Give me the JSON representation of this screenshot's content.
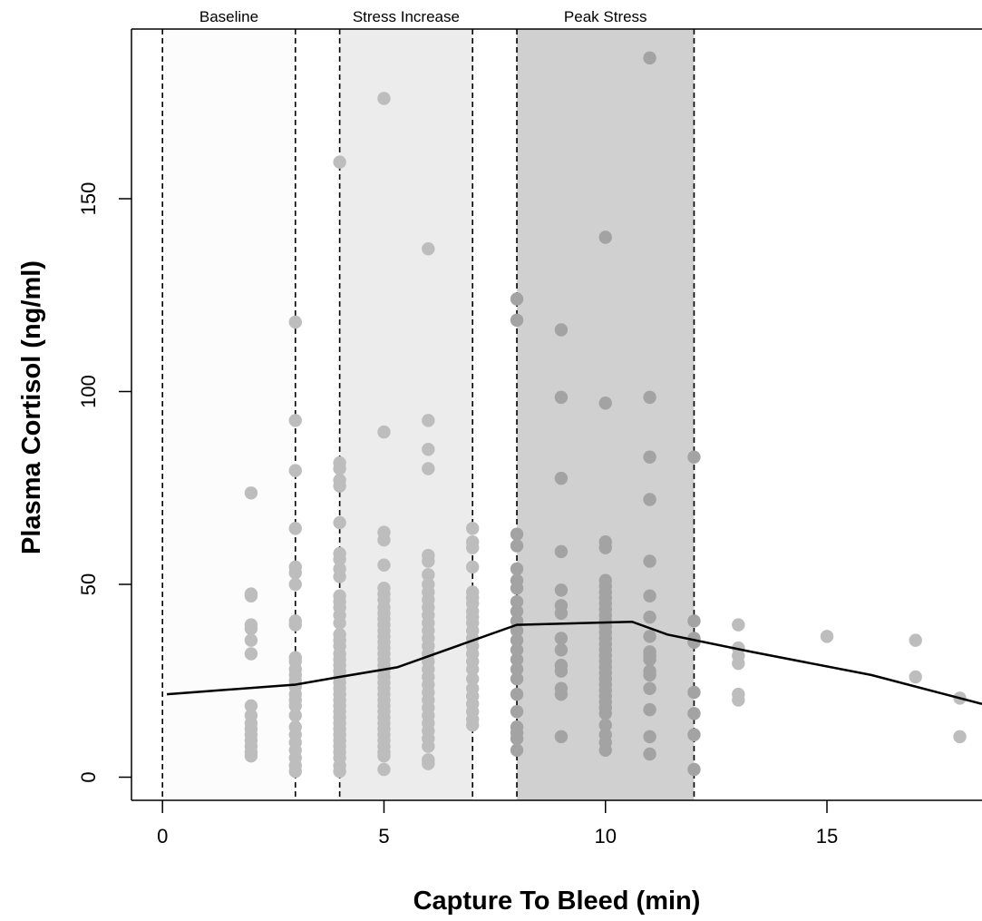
{
  "chart_data": {
    "type": "scatter",
    "title": "",
    "xlabel": "Capture To Bleed (min)",
    "ylabel": "Plasma Cortisol (ng/ml)",
    "xlim": [
      -0.7,
      18.5
    ],
    "ylim": [
      -6,
      194
    ],
    "x_ticks": [
      0,
      5,
      10,
      15
    ],
    "y_ticks": [
      0,
      50,
      100,
      150
    ],
    "grid": false,
    "legend": "none",
    "colors": {
      "point": "#bdbdbd",
      "point_in_peak": "#a3a3a3",
      "line": "#000000",
      "band_baseline": "#fcfcfc",
      "band_increase": "#ececec",
      "band_peak": "#d0d0d0"
    },
    "bands": [
      {
        "label": "Baseline",
        "start": 0,
        "end": 3
      },
      {
        "label": "Stress Increase",
        "start": 4,
        "end": 7
      },
      {
        "label": "Peak Stress",
        "start": 8,
        "end": 12
      }
    ],
    "dashed_lines_x": [
      0,
      3,
      4,
      7,
      8,
      12
    ],
    "trend_line": {
      "x": [
        0.1,
        3,
        4,
        5.3,
        8,
        10.6,
        11.4,
        13.3,
        16,
        18.5
      ],
      "y": [
        21.5,
        24,
        26,
        28.5,
        39.5,
        40.3,
        37,
        32.5,
        26.5,
        19
      ]
    },
    "points": [
      {
        "x": 2,
        "y": [
          73.7,
          47.5,
          47,
          39.5,
          38.5,
          35.5,
          32,
          18.5,
          16,
          14,
          12.5,
          11,
          9.5,
          8,
          6.5,
          5.5
        ]
      },
      {
        "x": 3,
        "y": [
          118,
          92.5,
          79.5,
          64.5,
          54.5,
          53,
          50,
          40.5,
          39.5,
          31,
          30,
          28,
          26.5,
          25,
          23.5,
          21.5,
          20,
          18.5,
          16,
          13,
          11,
          9,
          7,
          5,
          3,
          1.5
        ]
      },
      {
        "x": 4,
        "y": [
          159.5,
          81.5,
          80,
          77,
          75.5,
          66,
          58,
          56.5,
          54,
          52,
          47,
          45.5,
          44,
          42,
          40,
          37,
          35.5,
          34,
          32,
          30.5,
          29,
          27.5,
          26,
          24.5,
          23,
          21.5,
          20,
          18.5,
          17,
          15.5,
          14,
          12.5,
          11,
          9.5,
          8,
          6.5,
          5,
          3,
          1.5
        ]
      },
      {
        "x": 5,
        "y": [
          176,
          89.5,
          63.5,
          61.5,
          55,
          49,
          47.5,
          46,
          44,
          42.5,
          41,
          39.5,
          38,
          36.5,
          35,
          33.5,
          32,
          30.5,
          29,
          27.5,
          26,
          24.5,
          23,
          21.5,
          20,
          18.5,
          17,
          15.5,
          14,
          12.5,
          11,
          9.5,
          8,
          6.5,
          5.5,
          2
        ]
      },
      {
        "x": 6,
        "y": [
          137,
          92.5,
          85,
          80,
          57.5,
          56,
          52.5,
          50,
          48,
          46,
          44,
          42,
          40,
          38,
          36,
          34,
          32,
          30,
          28,
          26,
          24,
          22,
          20,
          18,
          16,
          14,
          12,
          10,
          8,
          4.5,
          3.5
        ]
      },
      {
        "x": 7,
        "y": [
          64.5,
          61,
          59.5,
          54.5,
          48,
          46.5,
          45,
          43,
          41.5,
          40,
          38,
          36,
          34,
          32,
          30,
          28,
          25.5,
          23,
          21,
          19,
          17,
          15,
          13.5
        ]
      },
      {
        "x": 8,
        "y": [
          124,
          118.5,
          63,
          60,
          54,
          51,
          49,
          45.5,
          43,
          40.5,
          38,
          35.5,
          33,
          30.5,
          28,
          25.5,
          21.5,
          17,
          13,
          11.5,
          10,
          7
        ]
      },
      {
        "x": 9,
        "y": [
          116,
          98.5,
          77.5,
          58.5,
          48.5,
          44.5,
          42.5,
          36,
          33,
          29,
          27.5,
          23,
          21.5,
          10.5
        ]
      },
      {
        "x": 10,
        "y": [
          140,
          97,
          61,
          59.5,
          51,
          49.5,
          48,
          46.5,
          45,
          43.5,
          42,
          40.5,
          39,
          37.5,
          36,
          34.5,
          33,
          31.5,
          30,
          28.5,
          27,
          25.5,
          24,
          22.5,
          21,
          19.5,
          18,
          16.5,
          13.5,
          11,
          9,
          7
        ]
      },
      {
        "x": 11,
        "y": [
          186.5,
          98.5,
          83,
          72,
          56,
          47,
          41.5,
          36.5,
          32.5,
          31.5,
          30.5,
          27.5,
          26.5,
          23,
          17.5,
          10.5,
          6
        ]
      },
      {
        "x": 12,
        "y": [
          83,
          40.5,
          36,
          35,
          22,
          16.5,
          11,
          2
        ]
      },
      {
        "x": 13,
        "y": [
          39.5,
          33.5,
          31.5,
          29.5,
          21.5,
          20
        ]
      },
      {
        "x": 15,
        "y": [
          36.5
        ]
      },
      {
        "x": 17,
        "y": [
          35.5,
          26
        ]
      },
      {
        "x": 18,
        "y": [
          20.5,
          10.5
        ]
      }
    ]
  }
}
